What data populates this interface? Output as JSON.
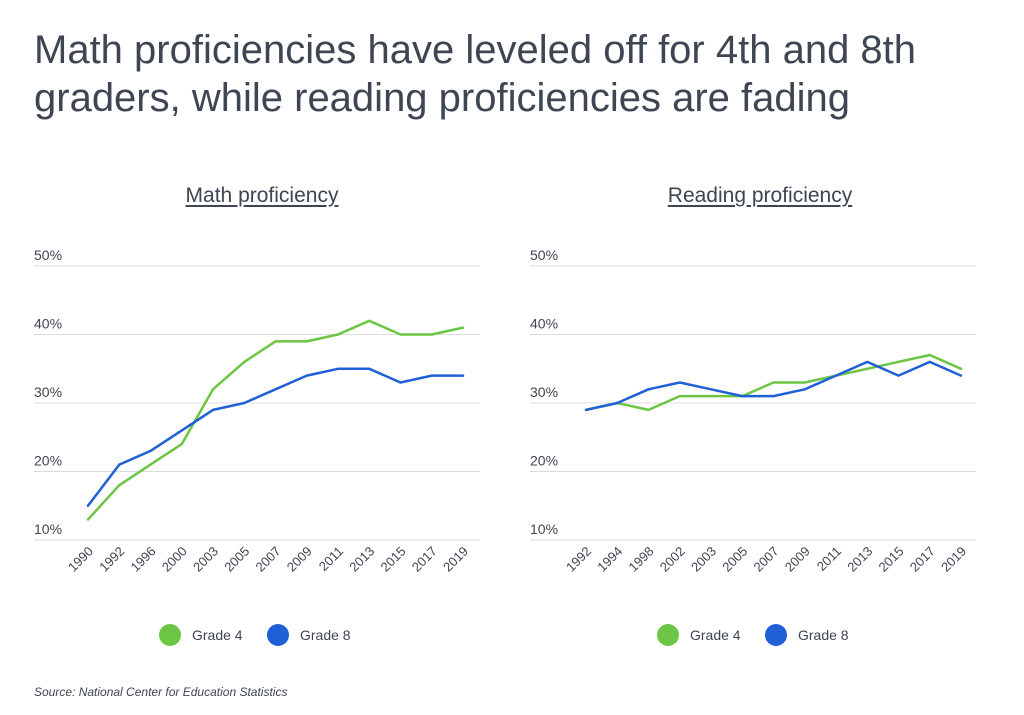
{
  "headline": "Math proficiencies have leveled off for 4th and 8th graders, while reading proficiencies are fading",
  "source": "Source:  National Center for Education Statistics",
  "colors": {
    "grade4": "#6cc644",
    "grade8": "#2060d6",
    "grid": "#dcdcdc",
    "text": "#3e4553"
  },
  "chart_data": [
    {
      "type": "line",
      "title": "Math proficiency",
      "x": [
        "1990",
        "1992",
        "1996",
        "2000",
        "2003",
        "2005",
        "2007",
        "2009",
        "2011",
        "2013",
        "2015",
        "2017",
        "2019"
      ],
      "yticks": [
        "50%",
        "40%",
        "30%",
        "20%",
        "10%"
      ],
      "ylim": [
        10,
        50
      ],
      "series": [
        {
          "name": "Grade 4",
          "values": [
            13,
            18,
            21,
            24,
            32,
            36,
            39,
            39,
            40,
            42,
            40,
            40,
            41
          ]
        },
        {
          "name": "Grade 8",
          "values": [
            15,
            21,
            23,
            26,
            29,
            30,
            32,
            34,
            35,
            35,
            33,
            34,
            34
          ]
        }
      ],
      "legend": [
        "Grade 4",
        "Grade 8"
      ]
    },
    {
      "type": "line",
      "title": "Reading proficiency",
      "x": [
        "1992",
        "1994",
        "1998",
        "2002",
        "2003",
        "2005",
        "2007",
        "2009",
        "2011",
        "2013",
        "2015",
        "2017",
        "2019"
      ],
      "yticks": [
        "50%",
        "40%",
        "30%",
        "20%",
        "10%"
      ],
      "ylim": [
        10,
        50
      ],
      "series": [
        {
          "name": "Grade 4",
          "values": [
            29,
            30,
            29,
            31,
            31,
            31,
            33,
            33,
            34,
            35,
            36,
            37,
            35
          ]
        },
        {
          "name": "Grade 8",
          "values": [
            29,
            30,
            32,
            33,
            32,
            31,
            31,
            32,
            34,
            36,
            34,
            36,
            34
          ]
        }
      ],
      "legend": [
        "Grade 4",
        "Grade 8"
      ]
    }
  ]
}
